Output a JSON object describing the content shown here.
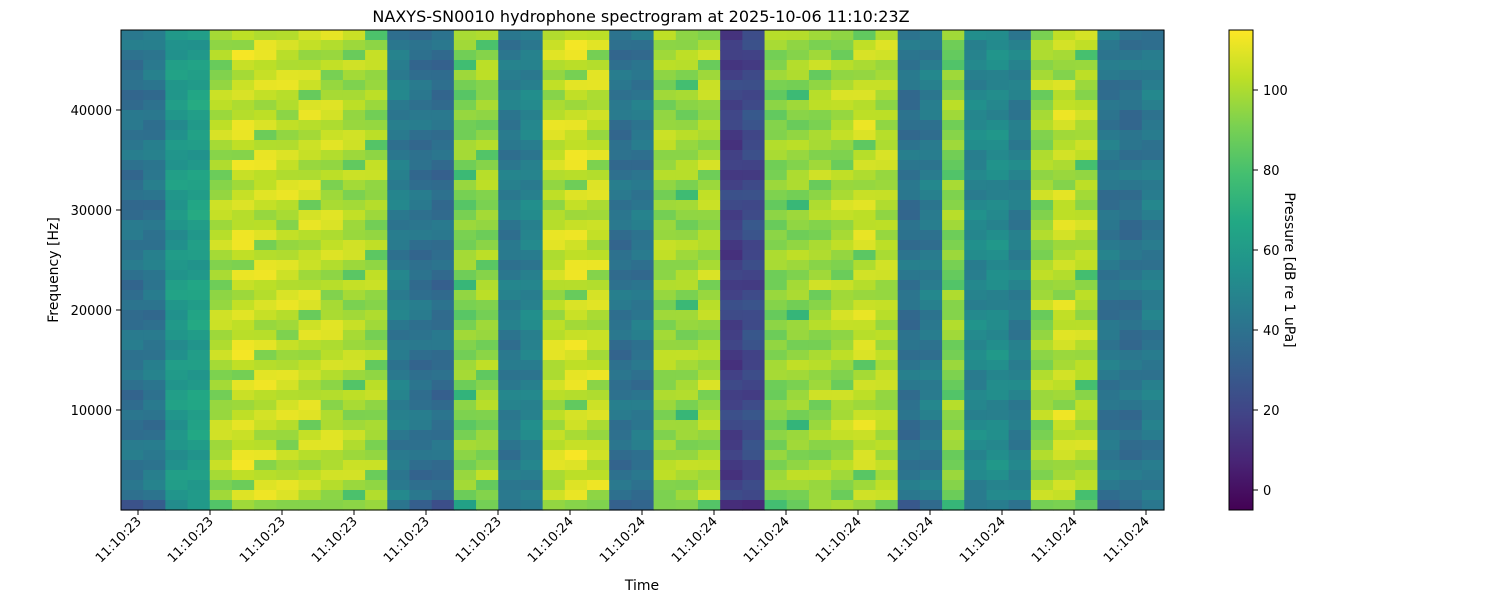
{
  "chart_data": {
    "type": "heatmap",
    "title": "NAXYS-SN0010 hydrophone spectrogram at 2025-10-06 11:10:23Z",
    "xlabel": "Time",
    "ylabel": "Frequency [Hz]",
    "colorbar_label": "Pressure [dB re 1 uPa]",
    "colormap": "viridis",
    "color_range": [
      -5,
      115
    ],
    "ylim": [
      0,
      48000
    ],
    "x_tick_labels": [
      "11:10:23",
      "11:10:23",
      "11:10:23",
      "11:10:23",
      "11:10:23",
      "11:10:23",
      "11:10:24",
      "11:10:24",
      "11:10:24",
      "11:10:24",
      "11:10:24",
      "11:10:24",
      "11:10:24",
      "11:10:24",
      "11:10:24"
    ],
    "y_ticks": [
      10000,
      20000,
      30000,
      40000
    ],
    "colorbar_ticks": [
      0,
      20,
      40,
      60,
      80,
      100
    ],
    "time_profile_db": [
      40,
      42,
      58,
      62,
      100,
      106,
      105,
      104,
      104,
      103,
      100,
      98,
      45,
      40,
      38,
      92,
      96,
      44,
      48,
      104,
      106,
      104,
      40,
      42,
      98,
      96,
      100,
      18,
      22,
      94,
      95,
      98,
      100,
      104,
      102,
      40,
      44,
      94,
      50,
      52,
      46,
      98,
      104,
      100,
      42,
      40,
      44
    ]
  }
}
